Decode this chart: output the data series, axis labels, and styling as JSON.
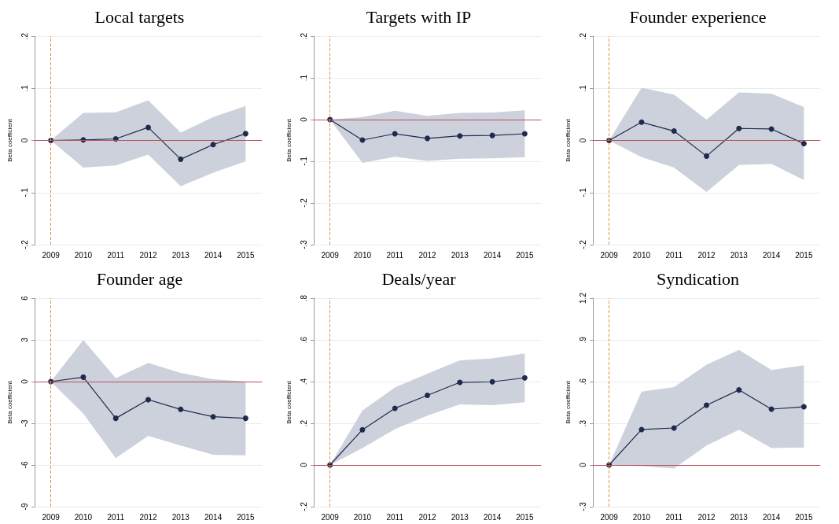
{
  "chart_data": [
    {
      "type": "line",
      "title": "Local targets",
      "ylabel": "Beta coefficient",
      "categories": [
        "2009",
        "2010",
        "2011",
        "2012",
        "2013",
        "2014",
        "2015"
      ],
      "ylim": [
        -0.2,
        0.2
      ],
      "yticks": [
        {
          "value": -0.2,
          "label": "-.2"
        },
        {
          "value": -0.1,
          "label": "-.1"
        },
        0,
        {
          "value": 0.1,
          "label": ".1"
        },
        {
          "value": 0.2,
          "label": ".2"
        }
      ],
      "grid": "y",
      "marker": "circle",
      "line_style": "solid",
      "series": [
        {
          "color": "#1f2b4d",
          "values": [
            0,
            0.001,
            0.003,
            0.025,
            -0.036,
            -0.008,
            0.013
          ],
          "lower": [
            0,
            -0.052,
            -0.048,
            -0.027,
            -0.088,
            -0.062,
            -0.04
          ],
          "upper": [
            0,
            0.053,
            0.054,
            0.077,
            0.015,
            0.045,
            0.066
          ]
        }
      ],
      "ref_lines": [
        {
          "axis": "y",
          "value": 0,
          "color": "#b5545c",
          "line_style": "solid"
        },
        {
          "axis": "x",
          "value": "2009",
          "color": "#e8923a",
          "line_style": "dashed"
        }
      ]
    },
    {
      "type": "line",
      "title": "Targets with IP",
      "ylabel": "Beta coefficient",
      "categories": [
        "2009",
        "2010",
        "2011",
        "2012",
        "2013",
        "2014",
        "2015"
      ],
      "ylim": [
        -0.3,
        0.2
      ],
      "yticks": [
        {
          "value": -0.3,
          "label": "-.3"
        },
        {
          "value": -0.2,
          "label": "-.2"
        },
        {
          "value": -0.1,
          "label": "-.1"
        },
        0,
        {
          "value": 0.1,
          "label": ".1"
        },
        {
          "value": 0.2,
          "label": ".2"
        }
      ],
      "grid": "y",
      "marker": "circle",
      "line_style": "solid",
      "series": [
        {
          "color": "#1f2b4d",
          "values": [
            0,
            -0.049,
            -0.034,
            -0.045,
            -0.039,
            -0.038,
            -0.034
          ],
          "lower": [
            0,
            -0.104,
            -0.089,
            -0.099,
            -0.094,
            -0.093,
            -0.09
          ],
          "upper": [
            0,
            0.006,
            0.021,
            0.009,
            0.016,
            0.017,
            0.022
          ]
        }
      ],
      "ref_lines": [
        {
          "axis": "y",
          "value": 0,
          "color": "#b5545c",
          "line_style": "solid"
        },
        {
          "axis": "x",
          "value": "2009",
          "color": "#e8923a",
          "line_style": "dashed"
        }
      ]
    },
    {
      "type": "line",
      "title": "Founder experience",
      "ylabel": "Beta coefficient",
      "categories": [
        "2009",
        "2010",
        "2011",
        "2012",
        "2013",
        "2014",
        "2015"
      ],
      "ylim": [
        -0.2,
        0.2
      ],
      "yticks": [
        {
          "value": -0.2,
          "label": "-.2"
        },
        {
          "value": -0.1,
          "label": "-.1"
        },
        0,
        {
          "value": 0.1,
          "label": ".1"
        },
        {
          "value": 0.2,
          "label": ".2"
        }
      ],
      "grid": "y",
      "marker": "circle",
      "line_style": "solid",
      "series": [
        {
          "color": "#1f2b4d",
          "values": [
            0,
            0.035,
            0.018,
            -0.03,
            0.023,
            0.022,
            -0.006
          ],
          "lower": [
            0,
            -0.032,
            -0.052,
            -0.099,
            -0.047,
            -0.045,
            -0.076
          ],
          "upper": [
            0,
            0.101,
            0.088,
            0.04,
            0.092,
            0.09,
            0.064
          ]
        }
      ],
      "ref_lines": [
        {
          "axis": "y",
          "value": 0,
          "color": "#b5545c",
          "line_style": "solid"
        },
        {
          "axis": "x",
          "value": "2009",
          "color": "#e8923a",
          "line_style": "dashed"
        }
      ]
    },
    {
      "type": "line",
      "title": "Founder age",
      "ylabel": "Beta coefficient",
      "categories": [
        "2009",
        "2010",
        "2011",
        "2012",
        "2013",
        "2014",
        "2015"
      ],
      "ylim": [
        -9,
        6
      ],
      "yticks": [
        -9,
        -6,
        -3,
        0,
        3,
        6
      ],
      "grid": "y",
      "marker": "circle",
      "line_style": "solid",
      "series": [
        {
          "color": "#1f2b4d",
          "values": [
            0,
            0.32,
            -2.64,
            -1.3,
            -2.0,
            -2.53,
            -2.64
          ],
          "lower": [
            0,
            -2.3,
            -5.5,
            -3.9,
            -4.6,
            -5.26,
            -5.3
          ],
          "upper": [
            0,
            2.98,
            0.26,
            1.34,
            0.62,
            0.17,
            0.02
          ]
        }
      ],
      "ref_lines": [
        {
          "axis": "y",
          "value": 0,
          "color": "#b5545c",
          "line_style": "solid"
        },
        {
          "axis": "x",
          "value": "2009",
          "color": "#e8923a",
          "line_style": "dashed"
        }
      ]
    },
    {
      "type": "line",
      "title": "Deals/year",
      "ylabel": "Beta coefficient",
      "categories": [
        "2009",
        "2010",
        "2011",
        "2012",
        "2013",
        "2014",
        "2015"
      ],
      "ylim": [
        -0.2,
        0.8
      ],
      "yticks": [
        {
          "value": -0.2,
          "label": "-.2"
        },
        0,
        {
          "value": 0.2,
          "label": ".2"
        },
        {
          "value": 0.4,
          "label": ".4"
        },
        {
          "value": 0.6,
          "label": ".6"
        },
        {
          "value": 0.8,
          "label": ".8"
        }
      ],
      "grid": "y",
      "marker": "circle",
      "line_style": "solid",
      "series": [
        {
          "color": "#1f2b4d",
          "values": [
            0,
            0.169,
            0.272,
            0.334,
            0.396,
            0.399,
            0.418
          ],
          "lower": [
            0,
            0.081,
            0.172,
            0.237,
            0.291,
            0.287,
            0.301
          ],
          "upper": [
            0,
            0.261,
            0.372,
            0.438,
            0.502,
            0.511,
            0.535
          ]
        }
      ],
      "ref_lines": [
        {
          "axis": "y",
          "value": 0,
          "color": "#b5545c",
          "line_style": "solid"
        },
        {
          "axis": "x",
          "value": "2009",
          "color": "#e8923a",
          "line_style": "dashed"
        }
      ]
    },
    {
      "type": "line",
      "title": "Syndication",
      "ylabel": "Beta coefficient",
      "categories": [
        "2009",
        "2010",
        "2011",
        "2012",
        "2013",
        "2014",
        "2015"
      ],
      "ylim": [
        -0.3,
        1.2
      ],
      "yticks": [
        {
          "value": -0.3,
          "label": "-.3"
        },
        0,
        {
          "value": 0.3,
          "label": ".3"
        },
        {
          "value": 0.6,
          "label": ".6"
        },
        {
          "value": 0.9,
          "label": ".9"
        },
        {
          "value": 1.2,
          "label": "1.2"
        }
      ],
      "grid": "y",
      "marker": "circle",
      "line_style": "solid",
      "series": [
        {
          "color": "#1f2b4d",
          "values": [
            0,
            0.255,
            0.266,
            0.43,
            0.54,
            0.402,
            0.419
          ],
          "lower": [
            0,
            -0.009,
            -0.026,
            0.14,
            0.253,
            0.121,
            0.126
          ],
          "upper": [
            0,
            0.528,
            0.56,
            0.721,
            0.828,
            0.683,
            0.717
          ]
        }
      ],
      "ref_lines": [
        {
          "axis": "y",
          "value": 0,
          "color": "#b5545c",
          "line_style": "solid"
        },
        {
          "axis": "x",
          "value": "2009",
          "color": "#e8923a",
          "line_style": "dashed"
        }
      ]
    }
  ]
}
